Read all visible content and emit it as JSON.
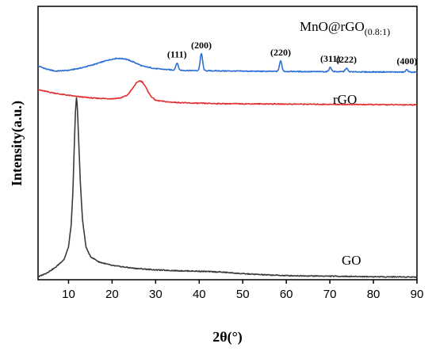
{
  "chart_data": {
    "type": "line",
    "xlabel": "2θ(°)",
    "ylabel": "Intensity(a.u.)",
    "xlim": [
      3,
      90
    ],
    "ylim": [
      0,
      100
    ],
    "x_ticks": [
      10,
      20,
      30,
      40,
      50,
      60,
      70,
      80,
      90
    ],
    "y_ticks": [],
    "grid": false,
    "legend": "none",
    "series": [
      {
        "name": "MnO@rGO",
        "label_main": "MnO@rGO",
        "label_sub": "(0.8:1)",
        "color": "#2e6fd6",
        "points": [
          [
            3,
            78.2
          ],
          [
            5,
            77.0
          ],
          [
            7,
            76.3
          ],
          [
            10,
            76.6
          ],
          [
            13,
            77.5
          ],
          [
            16,
            78.8
          ],
          [
            19,
            80.3
          ],
          [
            21,
            81.0
          ],
          [
            23,
            80.8
          ],
          [
            25,
            79.6
          ],
          [
            27,
            78.1
          ],
          [
            30,
            77.2
          ],
          [
            34,
            76.7
          ],
          [
            38,
            76.5
          ],
          [
            44,
            76.4
          ],
          [
            50,
            76.3
          ],
          [
            56,
            76.2
          ],
          [
            60,
            76.2
          ],
          [
            66,
            76.1
          ],
          [
            72,
            76.1
          ],
          [
            78,
            76.0
          ],
          [
            84,
            76.0
          ],
          [
            88,
            75.9
          ],
          [
            90,
            75.9
          ]
        ],
        "peaks": [
          {
            "x": 34.9,
            "height": 2.6,
            "label": "(111)"
          },
          {
            "x": 40.5,
            "height": 6.2,
            "label": "(200)"
          },
          {
            "x": 58.7,
            "height": 3.8,
            "label": "(220)"
          },
          {
            "x": 70.1,
            "height": 1.6,
            "label": "(311)"
          },
          {
            "x": 73.8,
            "height": 1.3,
            "label": "(222)"
          },
          {
            "x": 87.7,
            "height": 0.9,
            "label": "(400)"
          }
        ]
      },
      {
        "name": "rGO",
        "label_main": "rGO",
        "label_sub": "",
        "color": "#e03030",
        "points": [
          [
            3,
            69.5
          ],
          [
            5,
            68.8
          ],
          [
            8,
            67.9
          ],
          [
            12,
            67.0
          ],
          [
            16,
            66.4
          ],
          [
            20,
            66.2
          ],
          [
            22,
            66.5
          ],
          [
            23.5,
            67.5
          ],
          [
            24.5,
            69.5
          ],
          [
            25.5,
            71.8
          ],
          [
            26.3,
            72.8
          ],
          [
            27,
            72.3
          ],
          [
            27.8,
            70.2
          ],
          [
            28.8,
            67.3
          ],
          [
            30,
            65.6
          ],
          [
            33,
            65.0
          ],
          [
            38,
            64.6
          ],
          [
            45,
            64.4
          ],
          [
            55,
            64.3
          ],
          [
            65,
            64.2
          ],
          [
            75,
            64.1
          ],
          [
            85,
            64.0
          ],
          [
            90,
            64.0
          ]
        ],
        "peaks": []
      },
      {
        "name": "GO",
        "label_main": "GO",
        "label_sub": "",
        "color": "#3a3a3a",
        "points": [
          [
            3,
            1.0
          ],
          [
            5,
            2.5
          ],
          [
            7,
            4.5
          ],
          [
            9,
            7.5
          ],
          [
            10,
            12
          ],
          [
            10.6,
            20
          ],
          [
            11.0,
            32
          ],
          [
            11.3,
            48
          ],
          [
            11.6,
            62
          ],
          [
            11.8,
            67
          ],
          [
            12.0,
            64
          ],
          [
            12.3,
            52
          ],
          [
            12.7,
            36
          ],
          [
            13.2,
            22
          ],
          [
            14,
            12
          ],
          [
            15,
            8.5
          ],
          [
            17,
            6.5
          ],
          [
            20,
            5.2
          ],
          [
            25,
            4.2
          ],
          [
            30,
            3.6
          ],
          [
            35,
            3.3
          ],
          [
            40,
            3.1
          ],
          [
            45,
            2.8
          ],
          [
            50,
            2.2
          ],
          [
            55,
            1.8
          ],
          [
            60,
            1.5
          ],
          [
            70,
            1.3
          ],
          [
            80,
            1.1
          ],
          [
            90,
            1.0
          ]
        ],
        "peaks": []
      }
    ]
  }
}
